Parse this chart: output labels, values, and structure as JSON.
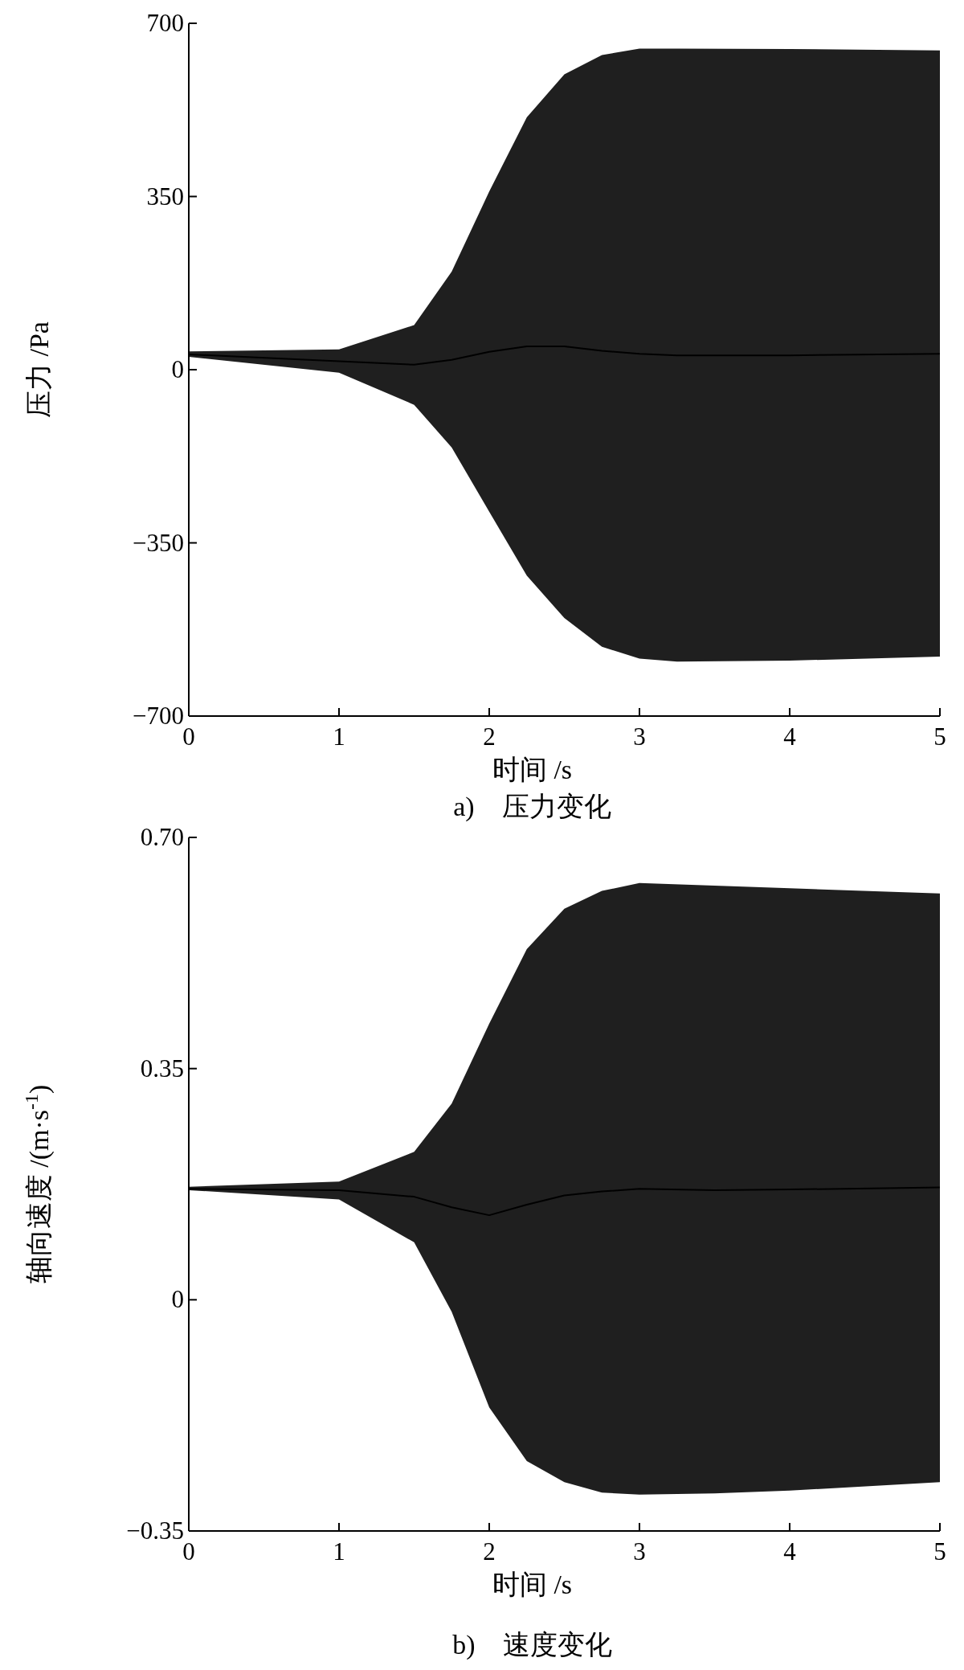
{
  "chart_data": [
    {
      "type": "line",
      "xlabel": "时间 /s",
      "ylabel": "压力 /Pa",
      "annotations": [
        "a)　压力变化"
      ],
      "xlim": [
        0,
        5
      ],
      "ylim": [
        -700,
        700
      ],
      "xticks": [
        0,
        1,
        2,
        3,
        4,
        5
      ],
      "yticks": [
        {
          "value": -700,
          "label": "−700"
        },
        {
          "value": -350,
          "label": "−350"
        },
        0,
        350,
        700
      ],
      "grid": false,
      "series": [
        {
          "color": "#000000",
          "x": [
            0,
            1,
            1.5,
            1.75,
            2,
            2.25,
            2.5,
            2.75,
            3,
            3.25,
            4,
            5
          ],
          "values": [
            31,
            17,
            10,
            20,
            36,
            47,
            47,
            38,
            32,
            29,
            29,
            32
          ],
          "lower": [
            26,
            -6,
            -71,
            -157,
            -287,
            -416,
            -502,
            -560,
            -584,
            -590,
            -588,
            -580
          ],
          "upper": [
            37,
            41,
            90,
            198,
            360,
            510,
            597,
            636,
            649,
            649,
            648,
            645
          ]
        }
      ]
    },
    {
      "type": "line",
      "xlabel": "时间 /s",
      "ylabel": "轴向速度 /(m·s$^{-1}$)",
      "annotations": [
        "b)　速度变化"
      ],
      "xlim": [
        0,
        5
      ],
      "ylim": [
        -0.35,
        0.7
      ],
      "xticks": [
        0,
        1,
        2,
        3,
        4,
        5
      ],
      "yticks": [
        {
          "value": -0.35,
          "label": "−0.35"
        },
        0,
        0.35,
        {
          "value": 0.7,
          "label": "0.70"
        }
      ],
      "grid": false,
      "series": [
        {
          "color": "#000000",
          "x": [
            0,
            1,
            1.5,
            1.75,
            2,
            2.25,
            2.5,
            2.75,
            3,
            3.5,
            4,
            5
          ],
          "values": [
            0.168,
            0.166,
            0.156,
            0.14,
            0.128,
            0.144,
            0.158,
            0.164,
            0.168,
            0.166,
            0.167,
            0.17
          ],
          "lower": [
            0.166,
            0.152,
            0.087,
            -0.018,
            -0.163,
            -0.244,
            -0.276,
            -0.292,
            -0.295,
            -0.293,
            -0.289,
            -0.276
          ],
          "upper": [
            0.171,
            0.179,
            0.224,
            0.297,
            0.418,
            0.531,
            0.592,
            0.619,
            0.631,
            0.627,
            0.623,
            0.615
          ]
        }
      ]
    }
  ]
}
